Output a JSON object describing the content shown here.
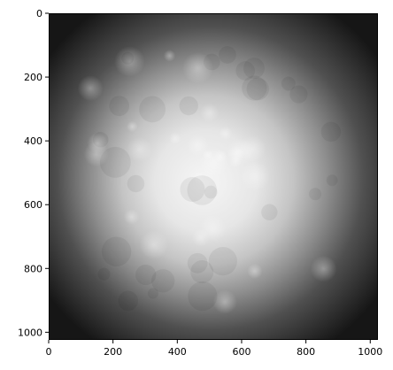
{
  "chart_data": {
    "type": "heatmap",
    "title": "",
    "xlabel": "",
    "ylabel": "",
    "colormap": "grayscale",
    "image_width": 1024,
    "image_height": 1024,
    "xlim": [
      0,
      1024
    ],
    "ylim": [
      1024,
      0
    ],
    "x_ticks": [
      0,
      200,
      400,
      600,
      800,
      1000
    ],
    "y_ticks": [
      0,
      200,
      400,
      600,
      800,
      1000
    ],
    "grid": false,
    "legend": "none",
    "description_colors": {
      "frame": "#000000",
      "dark_edge": "#1a1a1a",
      "bright_center": "#f4f4f4"
    }
  }
}
